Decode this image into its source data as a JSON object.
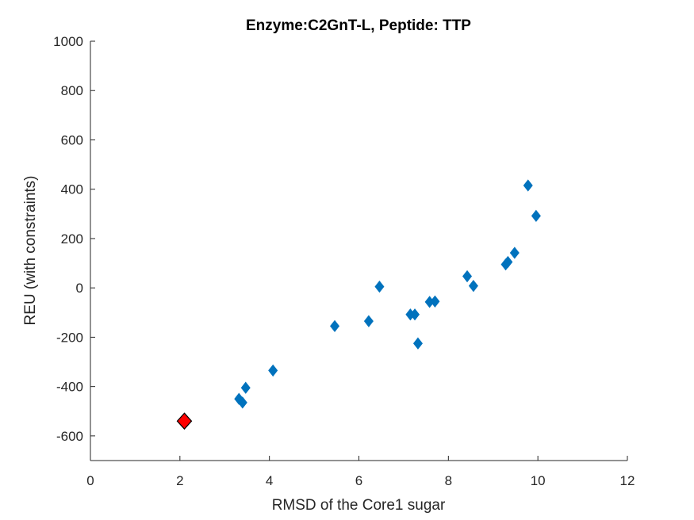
{
  "chart_data": {
    "type": "scatter",
    "title": "Enzyme:C2GnT-L, Peptide: TTP",
    "xlabel": "RMSD of the Core1 sugar",
    "ylabel": "REU (with constraints)",
    "xlim": [
      0,
      12
    ],
    "ylim": [
      -700,
      1000
    ],
    "xticks": [
      0,
      2,
      4,
      6,
      8,
      10,
      12
    ],
    "yticks": [
      -600,
      -400,
      -200,
      0,
      200,
      400,
      600,
      800,
      1000
    ],
    "xtick_labels": [
      "0",
      "2",
      "4",
      "6",
      "8",
      "10",
      "12"
    ],
    "ytick_labels": [
      "-600",
      "-400",
      "-200",
      "0",
      "200",
      "400",
      "600",
      "800",
      "1000"
    ],
    "grid": false,
    "series": [
      {
        "color": "#0072BD",
        "marker": "diamond",
        "points": [
          {
            "x": 3.32,
            "y": -450
          },
          {
            "x": 3.4,
            "y": -465
          },
          {
            "x": 3.47,
            "y": -405
          },
          {
            "x": 4.08,
            "y": -335
          },
          {
            "x": 5.46,
            "y": -155
          },
          {
            "x": 6.22,
            "y": -135
          },
          {
            "x": 6.46,
            "y": 5
          },
          {
            "x": 7.15,
            "y": -108
          },
          {
            "x": 7.25,
            "y": -108
          },
          {
            "x": 7.32,
            "y": -225
          },
          {
            "x": 7.58,
            "y": -57
          },
          {
            "x": 7.7,
            "y": -55
          },
          {
            "x": 8.42,
            "y": 47
          },
          {
            "x": 8.56,
            "y": 8
          },
          {
            "x": 9.28,
            "y": 95
          },
          {
            "x": 9.33,
            "y": 105
          },
          {
            "x": 9.48,
            "y": 142
          },
          {
            "x": 9.78,
            "y": 415
          },
          {
            "x": 9.96,
            "y": 292
          }
        ]
      },
      {
        "color": "#FF0000",
        "marker": "diamond-large",
        "points": [
          {
            "x": 2.1,
            "y": -540
          }
        ]
      }
    ]
  }
}
